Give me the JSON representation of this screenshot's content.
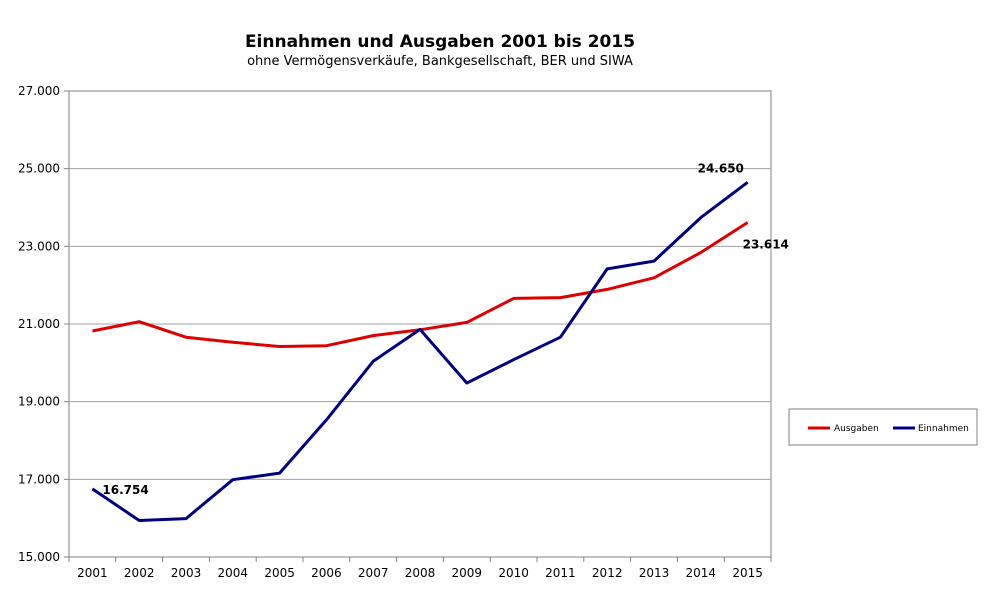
{
  "chart_data": {
    "type": "line",
    "title": "Einnahmen und Ausgaben 2001 bis 2015",
    "subtitle": "ohne Vermögensverkäufe, Bankgesellschaft, BER und SIWA",
    "x": [
      "2001",
      "2002",
      "2003",
      "2004",
      "2005",
      "2006",
      "2007",
      "2008",
      "2009",
      "2010",
      "2011",
      "2012",
      "2013",
      "2014",
      "2015"
    ],
    "y_ticks": [
      "15.000",
      "17.000",
      "19.000",
      "21.000",
      "23.000",
      "25.000",
      "27.000"
    ],
    "ylim": [
      15000,
      27000
    ],
    "grid": "horizontal",
    "legend_position": "right",
    "series": [
      {
        "name": "Ausgaben",
        "color": "#dd0000",
        "values": [
          20820,
          21060,
          20660,
          20530,
          20420,
          20440,
          20700,
          20850,
          21040,
          21660,
          21680,
          21890,
          22190,
          22840,
          23614
        ]
      },
      {
        "name": "Einnahmen",
        "color": "#000080",
        "values": [
          16754,
          15940,
          15990,
          16990,
          17160,
          18530,
          20040,
          20860,
          19480,
          20080,
          20660,
          22420,
          22620,
          23740,
          24650
        ]
      }
    ],
    "annotations": [
      {
        "series": 1,
        "index": 0,
        "text": "16.754"
      },
      {
        "series": 1,
        "index": 14,
        "text": "24.650"
      },
      {
        "series": 0,
        "index": 14,
        "text": "23.614"
      }
    ]
  }
}
